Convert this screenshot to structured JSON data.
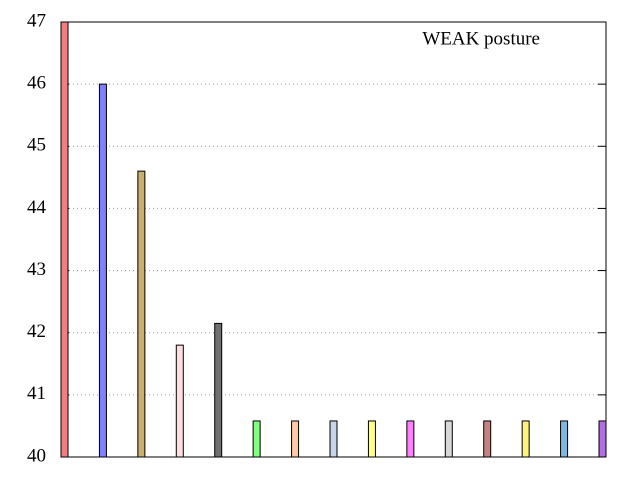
{
  "chart_data": {
    "type": "bar",
    "title": "WEAK posture",
    "categories": [
      null,
      null,
      null,
      null,
      null,
      null,
      null,
      null,
      null,
      null,
      null,
      null,
      null,
      null,
      null
    ],
    "series": [
      {
        "values": [
          47,
          46,
          44.6,
          41.8,
          42.15,
          40.58,
          40.58,
          40.58,
          40.58,
          40.58,
          40.58,
          40.58,
          40.58,
          40.58,
          40.58
        ],
        "colors": [
          "#f08080",
          "#8080ff",
          "#c8b070",
          "#ffdde0",
          "#707070",
          "#80ff80",
          "#ffc8a8",
          "#c8d4e8",
          "#ffff80",
          "#ff80ff",
          "#d8d8d8",
          "#c88080",
          "#fff080",
          "#80b8e0",
          "#b070e0"
        ]
      }
    ],
    "ylim": [
      40,
      47
    ],
    "yticks": [
      40,
      41,
      42,
      43,
      44,
      45,
      46,
      47
    ],
    "grid": true
  }
}
